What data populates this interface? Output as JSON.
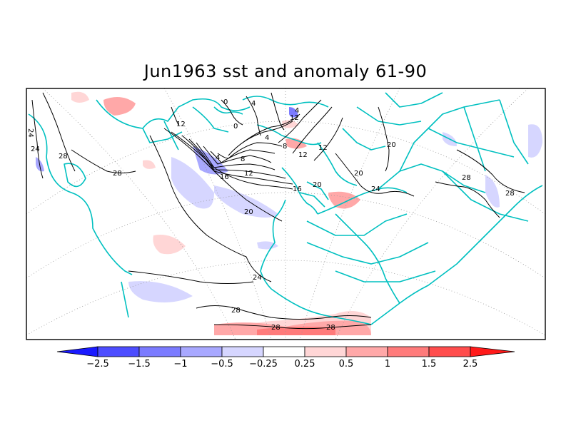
{
  "title": "Jun1963 sst and anomaly 61-90",
  "map": {
    "coast_color": "#00c0c0",
    "contour_color": "#000000",
    "grid_color": "#999999",
    "contour_labels": [
      "24",
      "24",
      "28",
      "28",
      "12",
      "0",
      "0",
      "4",
      "12",
      "8",
      "12",
      "4",
      "4",
      "8",
      "4",
      "16",
      "12",
      "16",
      "20",
      "20",
      "20",
      "20",
      "24",
      "28",
      "28",
      "24",
      "28",
      "28",
      "28",
      "12"
    ]
  },
  "colorbar": {
    "labels": [
      "−2.5",
      "−1.5",
      "−1",
      "−0.5",
      "−0.25",
      "0.25",
      "0.5",
      "1",
      "1.5",
      "2.5"
    ],
    "colors": [
      "#1a1aff",
      "#4d4dff",
      "#7b7bff",
      "#a8a8ff",
      "#d6d6ff",
      "#ffffff",
      "#ffd6d6",
      "#ffa8a8",
      "#ff7b7b",
      "#ff4d4d",
      "#ff1a1a"
    ]
  }
}
